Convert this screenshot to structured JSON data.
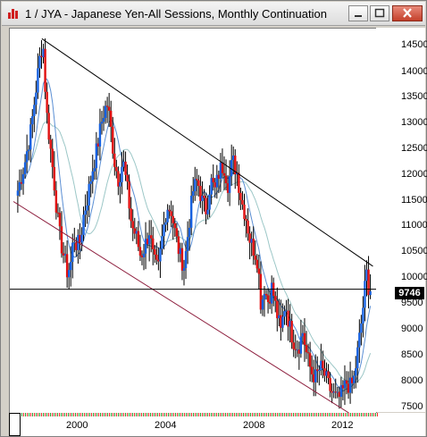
{
  "window": {
    "title": "1 / JYA - Japanese Yen-All Sessions, Monthly Continuation",
    "colors": {
      "up": "#1560e0",
      "down": "#e01010",
      "ma_fast": "#5b8fd4",
      "ma_slow": "#9cc7c7",
      "channel_lower": "#8b1a3a"
    }
  },
  "axis": {
    "y_labels": [
      "14500",
      "14000",
      "13500",
      "13000",
      "12500",
      "12000",
      "11500",
      "11000",
      "10500",
      "10000",
      "9500",
      "9000",
      "8500",
      "8000",
      "7500"
    ],
    "x_labels": [
      "2000",
      "2004",
      "2008",
      "2012"
    ]
  },
  "current_price": "9746",
  "chart_data": {
    "type": "ohlc-candlestick",
    "title": "1 / JYA - Japanese Yen-All Sessions, Monthly Continuation",
    "ylim": [
      7300,
      14900
    ],
    "x_range": [
      1997.0,
      2013.3
    ],
    "xticks": [
      2000,
      2004,
      2008,
      2012
    ],
    "yticks": [
      7500,
      8000,
      8500,
      9000,
      9500,
      10000,
      10500,
      11000,
      11500,
      12000,
      12500,
      13000,
      13500,
      14000,
      14500
    ],
    "close_path": [
      [
        1997.2,
        11700
      ],
      [
        1997.5,
        12200
      ],
      [
        1997.8,
        12900
      ],
      [
        1998.0,
        13600
      ],
      [
        1998.2,
        14300
      ],
      [
        1998.35,
        14650
      ],
      [
        1998.5,
        13300
      ],
      [
        1998.7,
        12500
      ],
      [
        1998.85,
        11900
      ],
      [
        1999.0,
        11200
      ],
      [
        1999.15,
        10700
      ],
      [
        1999.3,
        10400
      ],
      [
        1999.45,
        10100
      ],
      [
        1999.6,
        10200
      ],
      [
        1999.75,
        10800
      ],
      [
        1999.9,
        10600
      ],
      [
        2000.05,
        10700
      ],
      [
        2000.2,
        11200
      ],
      [
        2000.4,
        11600
      ],
      [
        2000.6,
        12100
      ],
      [
        2000.8,
        12500
      ],
      [
        2001.0,
        13000
      ],
      [
        2001.15,
        13300
      ],
      [
        2001.3,
        13400
      ],
      [
        2001.45,
        12900
      ],
      [
        2001.6,
        12300
      ],
      [
        2001.8,
        11900
      ],
      [
        2002.0,
        12300
      ],
      [
        2002.2,
        11700
      ],
      [
        2002.4,
        11000
      ],
      [
        2002.6,
        10800
      ],
      [
        2002.8,
        10400
      ],
      [
        2003.0,
        10600
      ],
      [
        2003.2,
        10900
      ],
      [
        2003.4,
        10300
      ],
      [
        2003.6,
        10100
      ],
      [
        2003.8,
        10800
      ],
      [
        2004.0,
        11400
      ],
      [
        2004.2,
        11300
      ],
      [
        2004.4,
        10800
      ],
      [
        2004.6,
        10400
      ],
      [
        2004.8,
        10200
      ],
      [
        2005.0,
        11000
      ],
      [
        2005.2,
        11700
      ],
      [
        2005.4,
        11900
      ],
      [
        2005.6,
        11500
      ],
      [
        2005.8,
        11300
      ],
      [
        2006.0,
        11900
      ],
      [
        2006.2,
        11700
      ],
      [
        2006.4,
        12100
      ],
      [
        2006.6,
        12200
      ],
      [
        2006.8,
        11800
      ],
      [
        2007.0,
        12300
      ],
      [
        2007.2,
        12050
      ],
      [
        2007.4,
        11500
      ],
      [
        2007.6,
        11200
      ],
      [
        2007.8,
        10700
      ],
      [
        2008.0,
        10500
      ],
      [
        2008.15,
        10300
      ],
      [
        2008.3,
        9400
      ],
      [
        2008.45,
        9800
      ],
      [
        2008.6,
        9500
      ],
      [
        2008.8,
        9800
      ],
      [
        2009.0,
        9300
      ],
      [
        2009.2,
        8900
      ],
      [
        2009.4,
        9500
      ],
      [
        2009.6,
        9000
      ],
      [
        2009.8,
        8700
      ],
      [
        2010.0,
        8600
      ],
      [
        2010.2,
        8900
      ],
      [
        2010.4,
        8400
      ],
      [
        2010.6,
        8100
      ],
      [
        2010.8,
        8000
      ],
      [
        2011.0,
        8200
      ],
      [
        2011.2,
        8050
      ],
      [
        2011.4,
        7800
      ],
      [
        2011.6,
        7650
      ],
      [
        2011.8,
        7550
      ],
      [
        2012.0,
        7700
      ],
      [
        2012.2,
        7900
      ],
      [
        2012.4,
        7800
      ],
      [
        2012.55,
        8000
      ],
      [
        2012.7,
        8500
      ],
      [
        2012.85,
        9000
      ],
      [
        2013.0,
        9600
      ],
      [
        2013.1,
        10100
      ],
      [
        2013.2,
        9800
      ],
      [
        2013.3,
        9746
      ]
    ],
    "trendlines": [
      {
        "name": "upper channel",
        "from": [
          1998.3,
          14700
        ],
        "to": [
          2013.4,
          10200
        ]
      },
      {
        "name": "lower channel",
        "from": [
          1997.0,
          11480
        ],
        "to": [
          2012.3,
          7300
        ]
      }
    ],
    "horizontal_line": 9746
  }
}
